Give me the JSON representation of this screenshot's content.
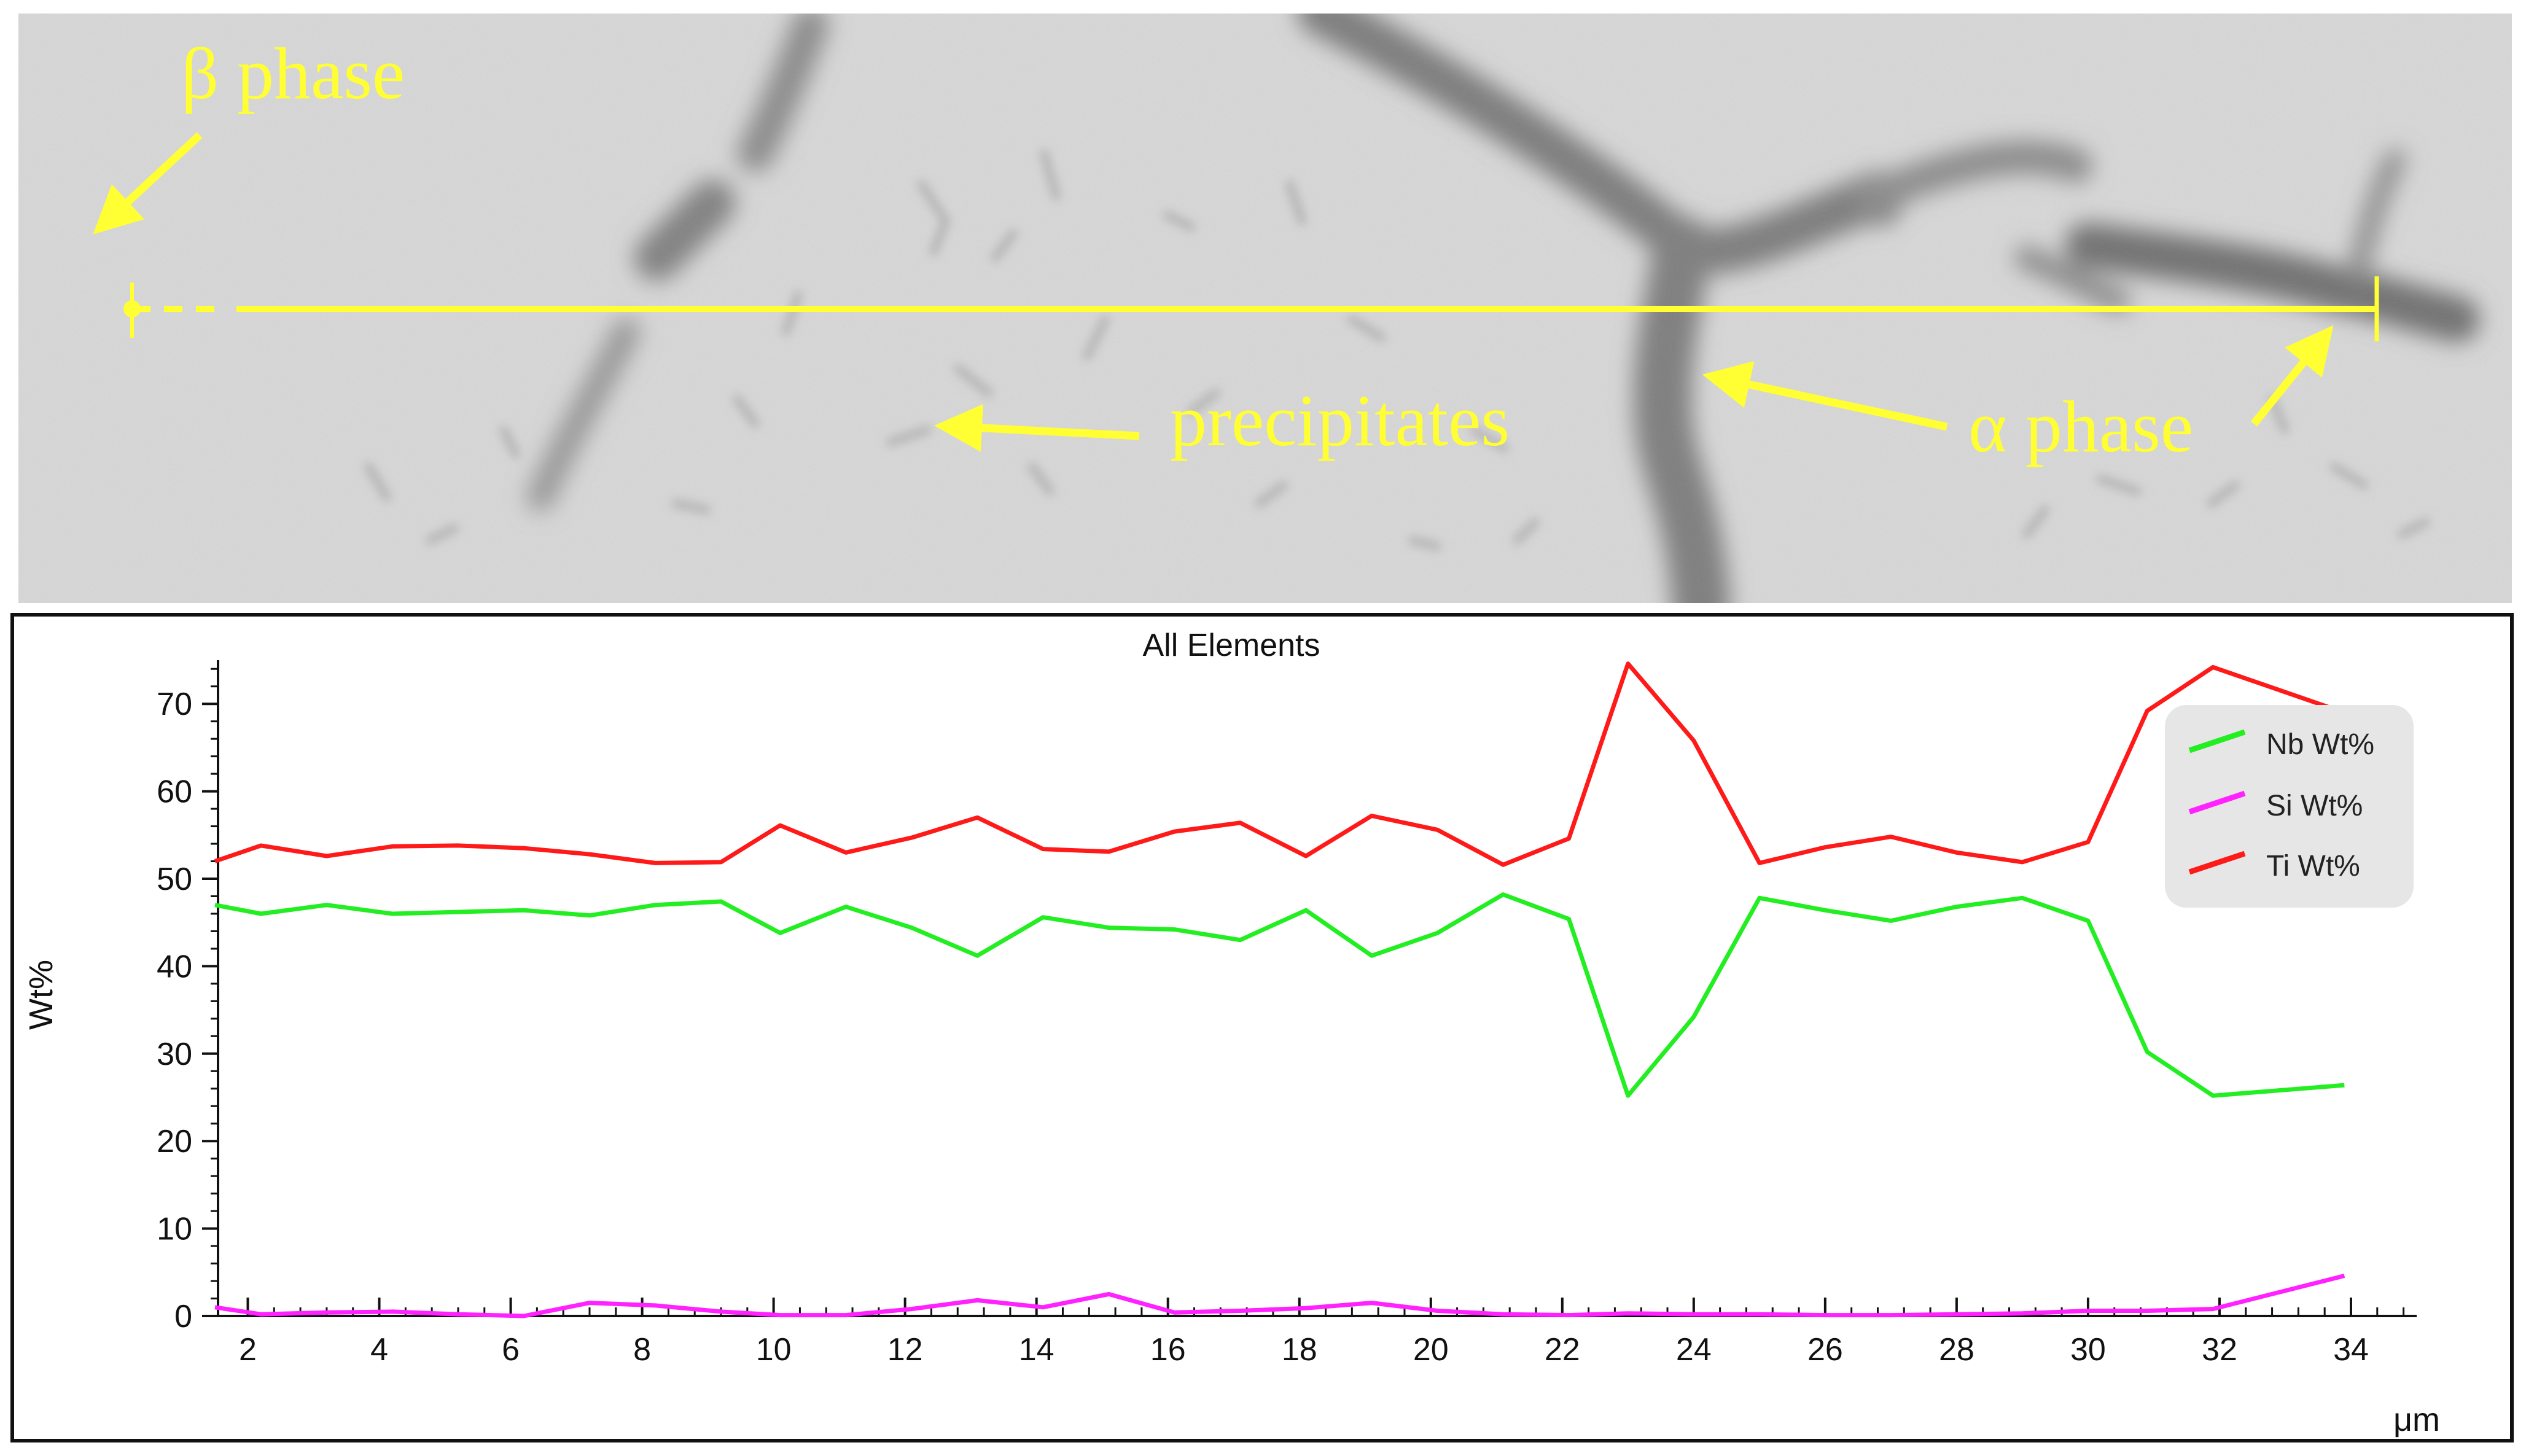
{
  "micrograph": {
    "labels": {
      "beta": "β phase",
      "precipitates": "precipitates",
      "alpha": "α phase"
    },
    "annotation_color": "#ffff33"
  },
  "chart_data": {
    "type": "line",
    "title": "All Elements",
    "xlabel": "μm",
    "ylabel": "Wt%",
    "xlim": [
      1.5,
      35
    ],
    "ylim": [
      0,
      75
    ],
    "x_ticks": [
      2,
      4,
      6,
      8,
      10,
      12,
      14,
      16,
      18,
      20,
      22,
      24,
      26,
      28,
      30,
      32,
      34
    ],
    "y_ticks": [
      0,
      10,
      20,
      30,
      40,
      50,
      60,
      70
    ],
    "grid": false,
    "legend_position": "top-right",
    "x": [
      1.5,
      2.2,
      3.2,
      4.2,
      5.2,
      6.2,
      7.2,
      8.2,
      9.2,
      10.1,
      11.1,
      12.1,
      13.1,
      14.1,
      15.1,
      16.1,
      17.1,
      18.1,
      19.1,
      20.1,
      21.1,
      22.1,
      23.0,
      24.0,
      25.0,
      26.0,
      27.0,
      28.0,
      29.0,
      30.0,
      30.9,
      31.9,
      33.9
    ],
    "series": [
      {
        "name": "Nb Wt%",
        "color": "#22ee22",
        "values": [
          47.0,
          46.0,
          47.0,
          46.0,
          46.2,
          46.4,
          45.8,
          47.0,
          47.4,
          43.8,
          46.8,
          44.4,
          41.2,
          45.6,
          44.4,
          44.2,
          43.0,
          46.4,
          41.2,
          43.8,
          48.2,
          45.4,
          25.2,
          34.2,
          47.8,
          46.4,
          45.2,
          46.8,
          47.8,
          45.2,
          30.2,
          25.2,
          26.4
        ]
      },
      {
        "name": "Si Wt%",
        "color": "#ff22ff",
        "values": [
          1.0,
          0.2,
          0.4,
          0.5,
          0.2,
          0.0,
          1.5,
          1.2,
          0.5,
          0.1,
          0.1,
          0.8,
          1.8,
          1.0,
          2.5,
          0.4,
          0.6,
          0.9,
          1.5,
          0.6,
          0.2,
          0.1,
          0.3,
          0.2,
          0.2,
          0.1,
          0.1,
          0.2,
          0.3,
          0.6,
          0.6,
          0.8,
          4.6
        ]
      },
      {
        "name": "Ti Wt%",
        "color": "#ff1a1a",
        "values": [
          52.0,
          53.8,
          52.6,
          53.7,
          53.8,
          53.5,
          52.8,
          51.8,
          51.9,
          56.1,
          53.0,
          54.7,
          57.0,
          53.4,
          53.1,
          55.4,
          56.4,
          52.6,
          57.2,
          55.6,
          51.6,
          54.6,
          74.6,
          65.8,
          51.8,
          53.6,
          54.8,
          53.0,
          51.9,
          54.2,
          69.2,
          74.2,
          69.0
        ]
      }
    ]
  }
}
